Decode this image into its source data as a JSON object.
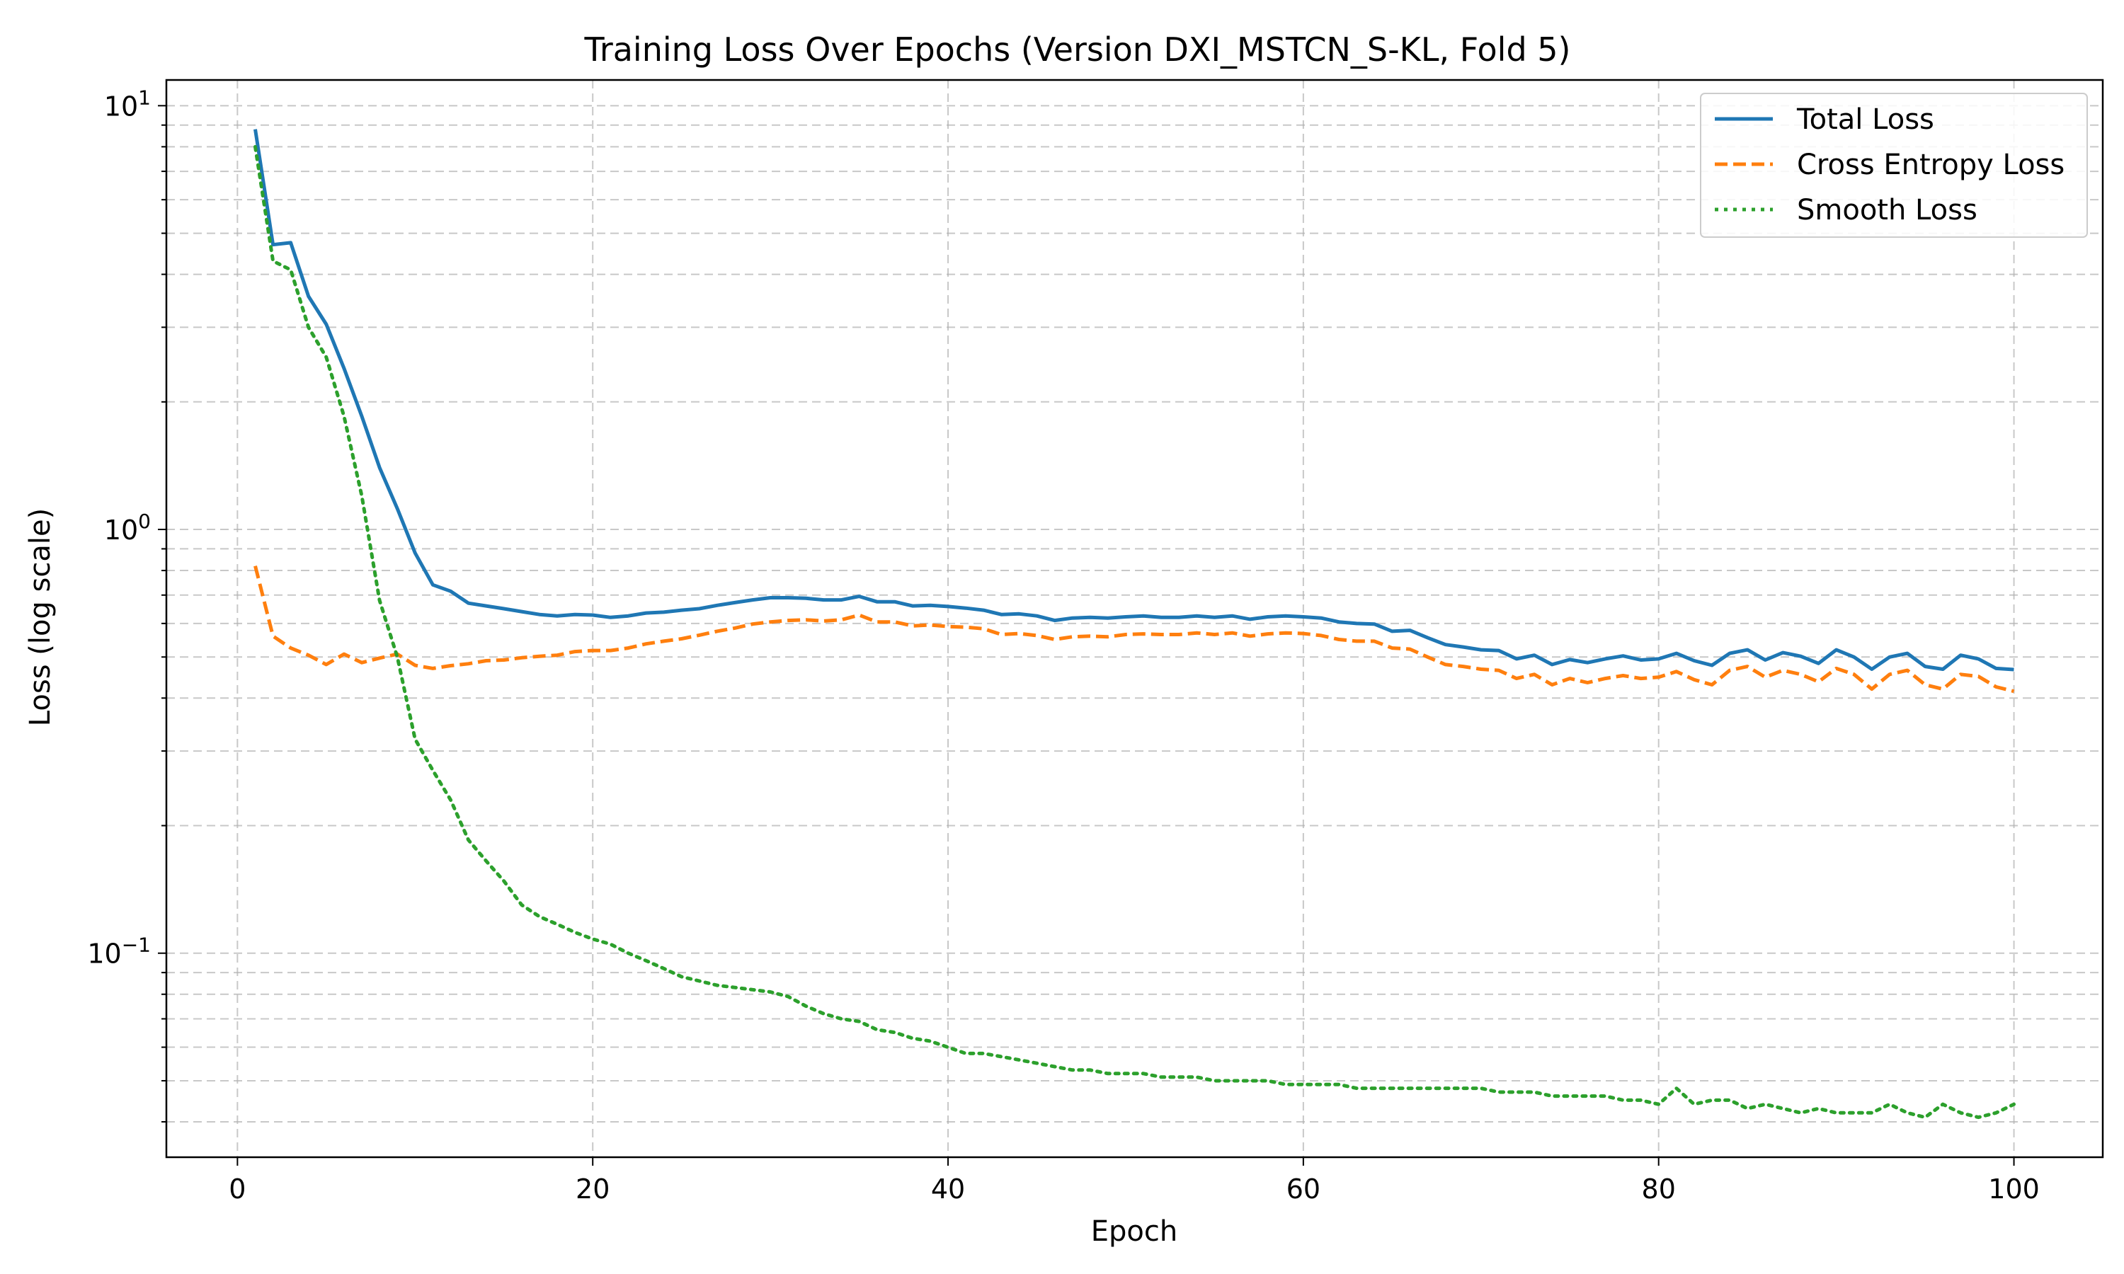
{
  "chart_data": {
    "type": "line",
    "title": "Training Loss Over Epochs (Version DXI_MSTCN_S-KL, Fold 5)",
    "xlabel": "Epoch",
    "ylabel": "Loss (log scale)",
    "yscale": "log",
    "xlim": [
      -4,
      105
    ],
    "ylim": [
      0.033,
      11.5
    ],
    "xticks": [
      0,
      20,
      40,
      60,
      80,
      100
    ],
    "yticks": [
      {
        "value": 0.1,
        "base": "10",
        "exp": "−1"
      },
      {
        "value": 1,
        "base": "10",
        "exp": "0"
      },
      {
        "value": 10,
        "base": "10",
        "exp": "1"
      }
    ],
    "grid": true,
    "legend_position": "top-right",
    "x": [
      1,
      2,
      3,
      4,
      5,
      6,
      7,
      8,
      9,
      10,
      11,
      12,
      13,
      14,
      15,
      16,
      17,
      18,
      19,
      20,
      21,
      22,
      23,
      24,
      25,
      26,
      27,
      28,
      29,
      30,
      31,
      32,
      33,
      34,
      35,
      36,
      37,
      38,
      39,
      40,
      41,
      42,
      43,
      44,
      45,
      46,
      47,
      48,
      49,
      50,
      51,
      52,
      53,
      54,
      55,
      56,
      57,
      58,
      59,
      60,
      61,
      62,
      63,
      64,
      65,
      66,
      67,
      68,
      69,
      70,
      71,
      72,
      73,
      74,
      75,
      76,
      77,
      78,
      79,
      80,
      81,
      82,
      83,
      84,
      85,
      86,
      87,
      88,
      89,
      90,
      91,
      92,
      93,
      94,
      95,
      96,
      97,
      98,
      99,
      100
    ],
    "series": [
      {
        "name": "Total Loss",
        "color": "#1f77b4",
        "style": "solid",
        "values": [
          8.8,
          4.7,
          4.75,
          3.55,
          3.05,
          2.4,
          1.85,
          1.4,
          1.12,
          0.88,
          0.74,
          0.715,
          0.67,
          0.66,
          0.65,
          0.64,
          0.63,
          0.625,
          0.63,
          0.628,
          0.62,
          0.625,
          0.635,
          0.638,
          0.645,
          0.65,
          0.662,
          0.672,
          0.682,
          0.69,
          0.69,
          0.688,
          0.682,
          0.682,
          0.695,
          0.675,
          0.675,
          0.66,
          0.662,
          0.658,
          0.652,
          0.645,
          0.63,
          0.632,
          0.625,
          0.61,
          0.618,
          0.62,
          0.618,
          0.622,
          0.625,
          0.62,
          0.62,
          0.625,
          0.62,
          0.625,
          0.614,
          0.622,
          0.625,
          0.622,
          0.618,
          0.605,
          0.6,
          0.598,
          0.575,
          0.578,
          0.555,
          0.535,
          0.528,
          0.52,
          0.518,
          0.495,
          0.505,
          0.48,
          0.493,
          0.485,
          0.495,
          0.503,
          0.492,
          0.495,
          0.51,
          0.49,
          0.478,
          0.51,
          0.52,
          0.492,
          0.512,
          0.502,
          0.483,
          0.52,
          0.5,
          0.468,
          0.5,
          0.51,
          0.475,
          0.468,
          0.505,
          0.495,
          0.47,
          0.467
        ]
      },
      {
        "name": "Cross Entropy Loss",
        "color": "#ff7f0e",
        "style": "dashed",
        "values": [
          0.82,
          0.56,
          0.525,
          0.505,
          0.48,
          0.508,
          0.485,
          0.497,
          0.508,
          0.478,
          0.47,
          0.477,
          0.482,
          0.49,
          0.492,
          0.498,
          0.502,
          0.505,
          0.515,
          0.518,
          0.518,
          0.525,
          0.537,
          0.545,
          0.552,
          0.563,
          0.575,
          0.585,
          0.598,
          0.605,
          0.61,
          0.612,
          0.608,
          0.612,
          0.628,
          0.605,
          0.605,
          0.592,
          0.595,
          0.59,
          0.588,
          0.583,
          0.565,
          0.568,
          0.562,
          0.55,
          0.558,
          0.56,
          0.558,
          0.565,
          0.567,
          0.565,
          0.565,
          0.57,
          0.565,
          0.57,
          0.56,
          0.567,
          0.57,
          0.568,
          0.562,
          0.55,
          0.545,
          0.545,
          0.525,
          0.522,
          0.5,
          0.48,
          0.475,
          0.468,
          0.465,
          0.445,
          0.455,
          0.43,
          0.445,
          0.435,
          0.445,
          0.452,
          0.445,
          0.448,
          0.462,
          0.442,
          0.43,
          0.465,
          0.475,
          0.448,
          0.465,
          0.455,
          0.437,
          0.47,
          0.455,
          0.42,
          0.455,
          0.465,
          0.43,
          0.42,
          0.455,
          0.45,
          0.425,
          0.415
        ]
      },
      {
        "name": "Smooth Loss",
        "color": "#2ca02c",
        "style": "dotted",
        "values": [
          8.0,
          4.3,
          4.1,
          3.0,
          2.55,
          1.85,
          1.2,
          0.68,
          0.5,
          0.32,
          0.27,
          0.23,
          0.185,
          0.165,
          0.148,
          0.13,
          0.122,
          0.117,
          0.112,
          0.108,
          0.105,
          0.1,
          0.096,
          0.092,
          0.088,
          0.086,
          0.084,
          0.083,
          0.082,
          0.081,
          0.079,
          0.075,
          0.072,
          0.07,
          0.069,
          0.066,
          0.065,
          0.063,
          0.062,
          0.06,
          0.058,
          0.058,
          0.057,
          0.056,
          0.055,
          0.054,
          0.053,
          0.053,
          0.052,
          0.052,
          0.052,
          0.051,
          0.051,
          0.051,
          0.05,
          0.05,
          0.05,
          0.05,
          0.049,
          0.049,
          0.049,
          0.049,
          0.048,
          0.048,
          0.048,
          0.048,
          0.048,
          0.048,
          0.048,
          0.048,
          0.047,
          0.047,
          0.047,
          0.046,
          0.046,
          0.046,
          0.046,
          0.045,
          0.045,
          0.044,
          0.048,
          0.044,
          0.045,
          0.045,
          0.043,
          0.044,
          0.043,
          0.042,
          0.043,
          0.042,
          0.042,
          0.042,
          0.044,
          0.042,
          0.041,
          0.044,
          0.042,
          0.041,
          0.042,
          0.044
        ]
      }
    ]
  }
}
